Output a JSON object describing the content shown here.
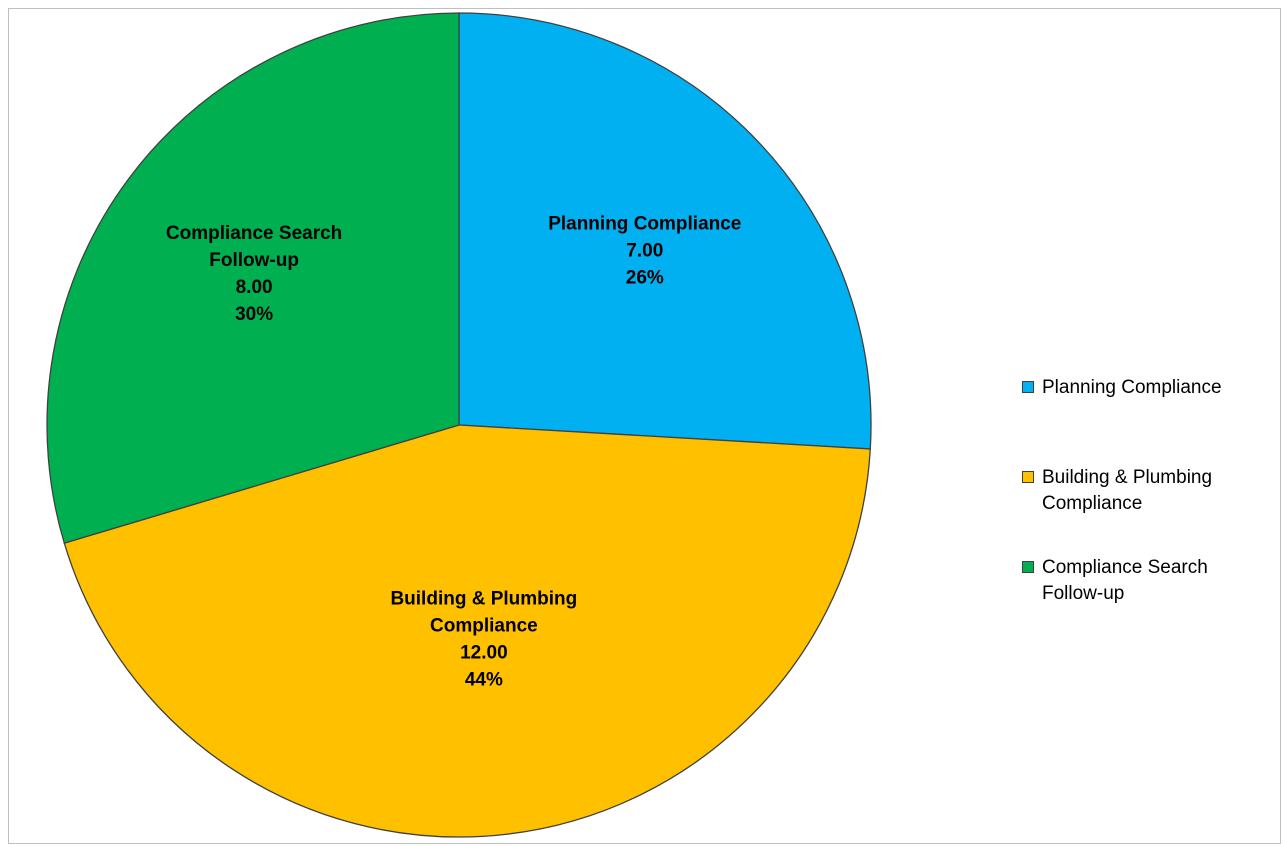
{
  "chart_data": {
    "type": "pie",
    "title": "",
    "series": [
      {
        "values": [
          7.0,
          12.0,
          8.0
        ]
      }
    ],
    "categories": [
      "Planning Compliance",
      "Building & Plumbing Compliance",
      "Compliance Search Follow-up"
    ],
    "slices": [
      {
        "label_lines": [
          "Planning Compliance"
        ],
        "value": 7.0,
        "value_text": "7.00",
        "percent_text": "26%",
        "color": "#00B0F0"
      },
      {
        "label_lines": [
          "Building & Plumbing",
          "Compliance"
        ],
        "value": 12.0,
        "value_text": "12.00",
        "percent_text": "44%",
        "color": "#FFC000"
      },
      {
        "label_lines": [
          "Compliance Search",
          "Follow-up"
        ],
        "value": 8.0,
        "value_text": "8.00",
        "percent_text": "30%",
        "color": "#00B050"
      }
    ],
    "legend": {
      "position": "right",
      "items": [
        {
          "label": "Planning Compliance",
          "color": "#00B0F0"
        },
        {
          "label": "Building & Plumbing Compliance",
          "color": "#FFC000"
        },
        {
          "label": "Compliance Search Follow-up",
          "color": "#00B050"
        }
      ]
    },
    "start_angle": "12 o'clock",
    "direction": "clockwise"
  }
}
